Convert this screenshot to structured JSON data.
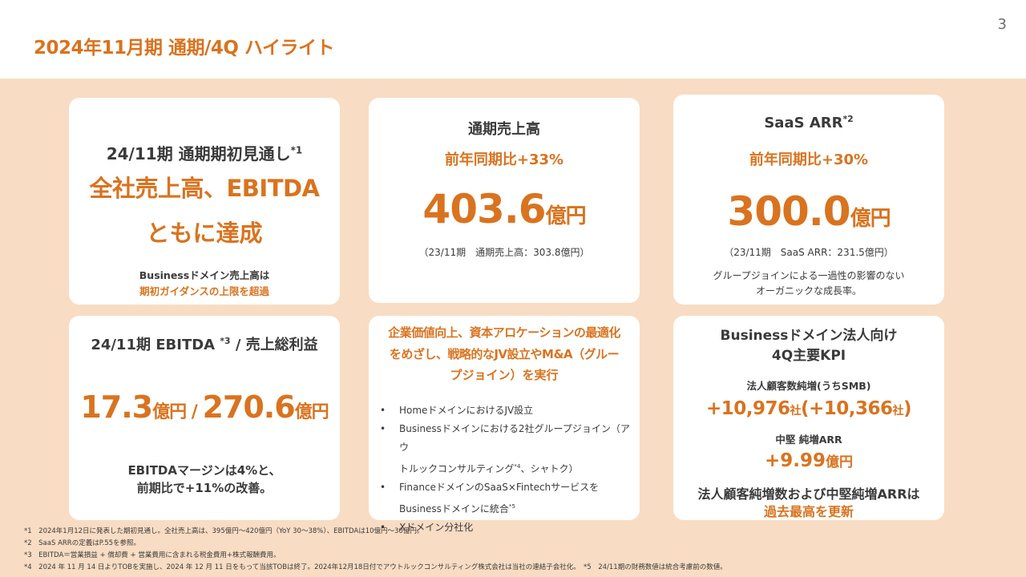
{
  "header": {
    "title": "2024年11月期 通期/4Q ハイライト",
    "page_number": "3"
  },
  "card1": {
    "subtitle": "24/11期 通期期初見通し",
    "subtitle_sup": "*1",
    "headline_1": "全社売上高、EBITDA",
    "headline_2": "ともに達成",
    "note_1": "Businessドメイン売上高は",
    "note_2": "期初ガイダンスの上限を超過"
  },
  "card2": {
    "title": "通期売上高",
    "growth": "前年同期比+33%",
    "value": "403.6",
    "unit": "億円",
    "note": "（23/11期　通期売上高：303.8億円）"
  },
  "card3": {
    "title": "SaaS ARR",
    "title_sup": "*2",
    "growth": "前年同期比+30%",
    "value": "300.0",
    "unit": "億円",
    "note": "（23/11期　SaaS ARR：231.5億円）",
    "desc_1": "グループジョインによる一過性の影響のない",
    "desc_2": "オーガニックな成長率。"
  },
  "card4": {
    "title_pre": "24/11期 EBITDA ",
    "title_sup": "*3",
    "title_post": " / 売上総利益",
    "value_1": "17.3",
    "unit_1": "億円",
    "separator": " / ",
    "value_2": "270.6",
    "unit_2": "億円",
    "note_1": "EBITDAマージンは4%と、",
    "note_2": "前期比で+11%の改善。"
  },
  "card5": {
    "title_1": "企業価値向上、資本アロケーションの最適化",
    "title_2": "をめざし、戦略的なJV設立やM&A（グルー",
    "title_3": "プジョイン）を実行",
    "bullets": [
      "Homeドメインにおける",
      "JV設立"
    ],
    "b1": "HomeドメインにおけるJV設立",
    "b2a": "Businessドメインにおける2社グループジョイン（アウ",
    "b2b": "トルックコンサルティング",
    "b2_sup": "*4",
    "b2c": "、シャトク）",
    "b3a": "FinanceドメインのSaaS×Fintechサービスを",
    "b3b": "Businessドメインに統合",
    "b3_sup": "*5",
    "b4": "Xドメイン分社化"
  },
  "card6": {
    "title_1": "Businessドメイン法人向け",
    "title_2": "4Q主要KPI",
    "kpi1_label": "法人顧客数純増(うちSMB)",
    "kpi1_value": "+10,976",
    "kpi1_unit": "社",
    "kpi1_sub_open": "(+10,366",
    "kpi1_sub_unit": "社",
    "kpi1_sub_close": ")",
    "kpi2_label": "中堅 純増ARR",
    "kpi2_value": "+9.99",
    "kpi2_unit": "億円",
    "conclusion_1": "法人顧客純増数および中堅純増ARRは",
    "conclusion_2": "過去最高を更新"
  },
  "footnotes": [
    "*1　2024年1月12日に発表した期初見通し。全社売上高は、395億円～420億円（YoY 30～38%）、EBITDAは10億円～30億円。",
    "*2　SaaS ARRの定義はP.55を参照。",
    "*3　EBITDA＝営業損益 + 償却費 + 営業費用に含まれる税金費用+株式報酬費用。",
    "*4　2024 年 11 月 14 日よりTOBを実施し、2024 年 12 月 11 日をもって当該TOBは終了。2024年12月18日付でアウトルックコンサルティング株式会社は当社の連結子会社化。　*5　24/11期の財務数値は統合考慮前の数値。"
  ],
  "colors": {
    "accent": "#d9731f",
    "panel_background": "#f8dcc3",
    "card_background": "#ffffff",
    "text": "#3a3a3a"
  }
}
